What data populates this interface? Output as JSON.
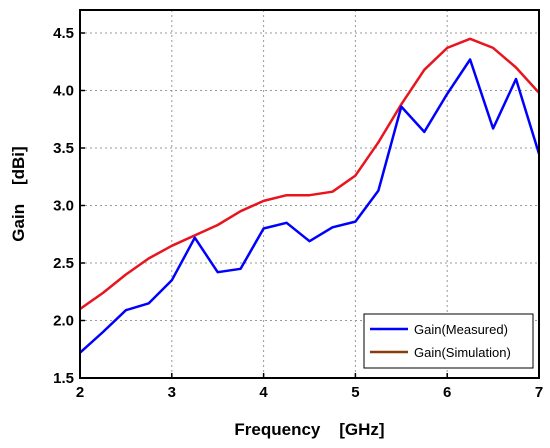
{
  "chart_data": {
    "type": "line",
    "title": "",
    "xlabel": "Frequency    [GHz]",
    "ylabel": "Gain    [dBi]",
    "xlim": [
      2,
      7
    ],
    "ylim": [
      1.5,
      4.7
    ],
    "xticks": [
      2,
      3,
      4,
      5,
      6,
      7
    ],
    "yticks": [
      1.5,
      2.0,
      2.5,
      3.0,
      3.5,
      4.0,
      4.5
    ],
    "xtick_labels": [
      "2",
      "3",
      "4",
      "5",
      "6",
      "7"
    ],
    "ytick_labels": [
      "1.5",
      "2.0",
      "2.5",
      "3.0",
      "3.5",
      "4.0",
      "4.5"
    ],
    "grid": true,
    "legend_position": "bottom-right",
    "series": [
      {
        "name": "Gain(Measured)",
        "color": "#0000ff",
        "x": [
          2.0,
          2.25,
          2.5,
          2.75,
          3.0,
          3.25,
          3.5,
          3.75,
          4.0,
          4.25,
          4.5,
          4.75,
          5.0,
          5.25,
          5.5,
          5.75,
          6.0,
          6.25,
          6.5,
          6.75,
          7.0
        ],
        "y": [
          1.72,
          1.9,
          2.09,
          2.15,
          2.35,
          2.72,
          2.42,
          2.45,
          2.8,
          2.85,
          2.69,
          2.81,
          2.86,
          3.13,
          3.86,
          3.64,
          3.97,
          4.27,
          3.67,
          4.1,
          3.45
        ]
      },
      {
        "name": "Gain(Simulation)",
        "color": "#e8141e",
        "legend_color": "#8b3a0e",
        "x": [
          2.0,
          2.25,
          2.5,
          2.75,
          3.0,
          3.25,
          3.5,
          3.75,
          4.0,
          4.25,
          4.5,
          4.75,
          5.0,
          5.25,
          5.5,
          5.75,
          6.0,
          6.25,
          6.5,
          6.75,
          7.0
        ],
        "y": [
          2.1,
          2.24,
          2.4,
          2.54,
          2.65,
          2.74,
          2.83,
          2.95,
          3.04,
          3.09,
          3.09,
          3.12,
          3.26,
          3.55,
          3.88,
          4.18,
          4.37,
          4.45,
          4.37,
          4.2,
          3.98
        ]
      }
    ]
  }
}
